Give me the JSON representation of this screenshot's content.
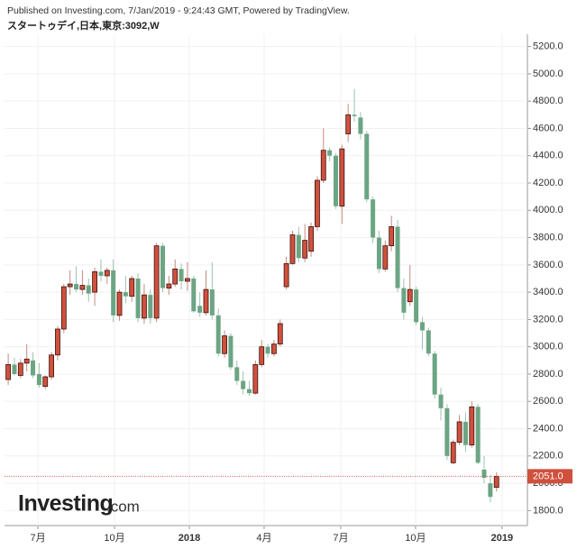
{
  "header": {
    "published": "Published on Investing.com, 7/Jan/2019 - 9:24:43 GMT, Powered by TradingView.",
    "symbol": "スタートゥデイ,日本,東京:3092,W",
    "logo": "Investing",
    "logo_suffix": ".com"
  },
  "chart_data": {
    "type": "candlestick",
    "up_color": "#d0503e",
    "down_color": "#6ba583",
    "grid": true,
    "open": [
      2760,
      2870,
      2790,
      2880,
      2900,
      2800,
      2710,
      2780,
      2940,
      3130,
      3440,
      3460,
      3420,
      3450,
      3400,
      3550,
      3520,
      3560,
      3230,
      3400,
      3370,
      3500,
      3210,
      3380,
      3210,
      3740,
      3430,
      3460,
      3570,
      3480,
      3500,
      3300,
      3250,
      3420,
      3230,
      2950,
      3080,
      2850,
      2750,
      2690,
      2660,
      2870,
      3000,
      2950,
      3020,
      3440,
      3610,
      3820,
      3650,
      3700,
      3880,
      4220,
      4440,
      4400,
      4030,
      4560,
      4700,
      4680,
      4560,
      4080,
      3800,
      3570,
      3740,
      3880,
      3430,
      3330,
      3420,
      3180,
      3120,
      2950,
      2650,
      2550,
      2150,
      2300,
      2450,
      2280,
      2560,
      2100,
      2000,
      1970
    ],
    "high": [
      2950,
      2920,
      2910,
      3020,
      2960,
      2880,
      2790,
      2960,
      3150,
      3460,
      3560,
      3590,
      3560,
      3500,
      3580,
      3640,
      3580,
      3640,
      3420,
      3520,
      3520,
      3540,
      3460,
      3420,
      3760,
      3760,
      3520,
      3640,
      3610,
      3620,
      3520,
      3400,
      3560,
      3620,
      3280,
      3120,
      3100,
      2900,
      2820,
      2750,
      2900,
      3050,
      3020,
      3050,
      3200,
      3660,
      3850,
      3880,
      3900,
      3910,
      4250,
      4600,
      4460,
      4420,
      4480,
      4780,
      4890,
      4720,
      4580,
      4100,
      3850,
      3780,
      3960,
      3930,
      3500,
      3600,
      3440,
      3220,
      3140,
      2970,
      2700,
      2580,
      2320,
      2500,
      2520,
      2600,
      2580,
      2200,
      2060,
      2080
    ],
    "low": [
      2720,
      2790,
      2770,
      2820,
      2770,
      2700,
      2690,
      2760,
      2900,
      3100,
      3380,
      3400,
      3380,
      3330,
      3300,
      3480,
      3460,
      3180,
      3190,
      3320,
      3330,
      3180,
      3170,
      3170,
      3180,
      3400,
      3380,
      3440,
      3420,
      3410,
      3250,
      3220,
      3230,
      3200,
      2930,
      2920,
      2830,
      2720,
      2650,
      2640,
      2650,
      2850,
      2920,
      2930,
      3000,
      3420,
      3600,
      3620,
      3620,
      3660,
      3850,
      4200,
      4360,
      4010,
      3900,
      4500,
      4650,
      4520,
      4060,
      3760,
      3540,
      3550,
      3700,
      3400,
      3200,
      3300,
      3160,
      2980,
      2930,
      2620,
      2460,
      2170,
      2140,
      2280,
      2230,
      2260,
      2140,
      2000,
      1860,
      1940
    ],
    "close": [
      2870,
      2800,
      2880,
      2910,
      2790,
      2720,
      2780,
      2940,
      3130,
      3440,
      3460,
      3420,
      3450,
      3390,
      3550,
      3520,
      3560,
      3230,
      3400,
      3370,
      3500,
      3210,
      3380,
      3210,
      3740,
      3430,
      3460,
      3570,
      3480,
      3500,
      3260,
      3250,
      3420,
      3230,
      2950,
      3080,
      2850,
      2750,
      2690,
      2660,
      2870,
      3000,
      2950,
      3020,
      3170,
      3610,
      3820,
      3650,
      3780,
      3880,
      4220,
      4440,
      4400,
      4030,
      4450,
      4700,
      4690,
      4560,
      4080,
      3800,
      3570,
      3740,
      3880,
      3430,
      3250,
      3420,
      3180,
      3120,
      2950,
      2650,
      2550,
      2200,
      2300,
      2450,
      2280,
      2560,
      2150,
      2040,
      1900,
      2051
    ],
    "last": {
      "value": 2051,
      "label": "2051.0"
    },
    "xlim": [
      -0.6,
      84
    ],
    "xticks": [
      {
        "value": 4.8,
        "label": "7月"
      },
      {
        "value": 17.2,
        "label": "10月"
      },
      {
        "value": 29.3,
        "label": "2018"
      },
      {
        "value": 41.4,
        "label": "4月"
      },
      {
        "value": 53.8,
        "label": "7月"
      },
      {
        "value": 65.9,
        "label": "10月"
      },
      {
        "value": 79.9,
        "label": "2019"
      }
    ],
    "ylim": [
      1690,
      5290
    ],
    "yticks": [
      {
        "value": 1800,
        "label": "1800.0"
      },
      {
        "value": 2000,
        "label": "2000.0"
      },
      {
        "value": 2200,
        "label": "2200.0"
      },
      {
        "value": 2400,
        "label": "2400.0"
      },
      {
        "value": 2600,
        "label": "2600.0"
      },
      {
        "value": 2800,
        "label": "2800.0"
      },
      {
        "value": 3000,
        "label": "3000.0"
      },
      {
        "value": 3200,
        "label": "3200.0"
      },
      {
        "value": 3400,
        "label": "3400.0"
      },
      {
        "value": 3600,
        "label": "3600.0"
      },
      {
        "value": 3800,
        "label": "3800.0"
      },
      {
        "value": 4000,
        "label": "4000.0"
      },
      {
        "value": 4200,
        "label": "4200.0"
      },
      {
        "value": 4400,
        "label": "4400.0"
      },
      {
        "value": 4600,
        "label": "4600.0"
      },
      {
        "value": 4800,
        "label": "4800.0"
      },
      {
        "value": 5000,
        "label": "5000.0"
      },
      {
        "value": 5200,
        "label": "5200.0"
      }
    ]
  }
}
